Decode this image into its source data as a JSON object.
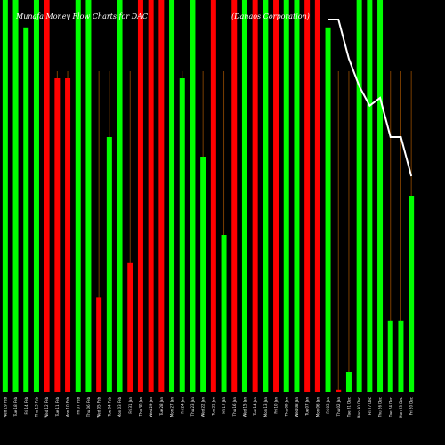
{
  "chart_data": {
    "type": "bar",
    "title": "Munafa Money Flow Charts for DAC",
    "subtitle": "(Danaos Corporation)",
    "colors": {
      "up": "#00ff00",
      "down": "#ff0000",
      "line": "#ffffff",
      "separator": "#7a3d00",
      "background": "#000000"
    },
    "ylim": [
      0,
      100
    ],
    "categories": [
      "Wed 19 Feb",
      "Tue 18 Feb",
      "Fri 14 Feb",
      "Thu 13 Feb",
      "Wed 12 Feb",
      "Tue 11 Feb",
      "Mon 10 Feb",
      "Fri 07 Feb",
      "Thu 06 Feb",
      "Wed 05 Feb",
      "Tue 04 Feb",
      "Mon 03 Feb",
      "Fri 31 Jan",
      "Thu 30 Jan",
      "Wed 29 Jan",
      "Tue 28 Jan",
      "Mon 27 Jan",
      "Fri 24 Jan",
      "Thu 23 Jan",
      "Wed 22 Jan",
      "Tue 21 Jan",
      "Fri 17 Jan",
      "Thu 16 Jan",
      "Wed 15 Jan",
      "Tue 14 Jan",
      "Mon 13 Jan",
      "Fri 10 Jan",
      "Thu 09 Jan",
      "Wed 08 Jan",
      "Tue 07 Jan",
      "Mon 06 Jan",
      "Fri 03 Jan",
      "Thu 02 Jan",
      "Tue 31 Dec",
      "Mon 30 Dec",
      "Fri 27 Dec",
      "Thu 26 Dec",
      "Tue 24 Dec",
      "Mon 23 Dec",
      "Fri 20 Dec"
    ],
    "values": [
      100,
      100,
      93,
      100,
      100,
      80,
      80,
      100,
      100,
      24,
      65,
      100,
      33,
      100,
      100,
      100,
      100,
      80,
      100,
      60,
      100,
      40,
      100,
      100,
      100,
      100,
      100,
      100,
      100,
      100,
      100,
      93,
      0.5,
      5,
      100,
      100,
      100,
      18,
      18,
      50
    ],
    "directions": [
      "up",
      "up",
      "up",
      "up",
      "down",
      "down",
      "down",
      "up",
      "up",
      "down",
      "up",
      "up",
      "down",
      "down",
      "down",
      "down",
      "up",
      "up",
      "up",
      "up",
      "down",
      "up",
      "down",
      "up",
      "down",
      "up",
      "down",
      "up",
      "up",
      "down",
      "down",
      "up",
      "down",
      "up",
      "up",
      "up",
      "up",
      "up",
      "up",
      "up"
    ],
    "line": {
      "x_start_index": 31,
      "values": [
        95,
        95,
        85,
        78,
        73,
        75,
        65,
        65,
        55
      ]
    }
  }
}
